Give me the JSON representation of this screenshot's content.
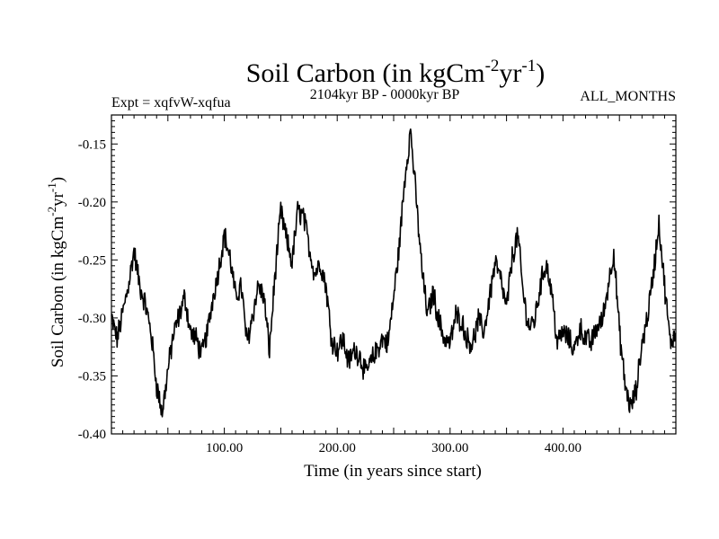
{
  "chart_data": {
    "type": "line",
    "title": "Soil Carbon (in kgCm",
    "title_sup1": "-2",
    "title_mid": "yr",
    "title_sup2": "-1",
    "title_end": ")",
    "subtitle_left": "Expt = xqfvW-xqfua",
    "subtitle_center": "2104kyr BP - 0000kyr BP",
    "subtitle_right": "ALL_MONTHS",
    "xlabel": "Time (in years since start)",
    "ylabel": "Soil Carbon (in kgCm",
    "ylabel_sup1": "-2",
    "ylabel_mid": "yr",
    "ylabel_sup2": "-1",
    "ylabel_end": ")",
    "xlim": [
      0,
      500
    ],
    "ylim": [
      -0.4,
      -0.125
    ],
    "x_ticks": [
      100,
      200,
      300,
      400
    ],
    "x_tick_labels": [
      "100.00",
      "200.00",
      "300.00",
      "400.00"
    ],
    "y_ticks": [
      -0.4,
      -0.35,
      -0.3,
      -0.25,
      -0.2,
      -0.15
    ],
    "y_tick_labels": [
      "-0.40",
      "-0.35",
      "-0.30",
      "-0.25",
      "-0.20",
      "-0.15"
    ],
    "series": [
      {
        "name": "Soil Carbon",
        "color": "#000000",
        "x": [
          0,
          5,
          10,
          15,
          20,
          25,
          30,
          35,
          40,
          45,
          50,
          55,
          60,
          65,
          70,
          75,
          80,
          85,
          90,
          95,
          100,
          105,
          110,
          115,
          120,
          125,
          130,
          135,
          140,
          145,
          150,
          155,
          160,
          165,
          170,
          175,
          180,
          185,
          190,
          195,
          200,
          205,
          210,
          215,
          220,
          225,
          230,
          235,
          240,
          245,
          250,
          255,
          260,
          265,
          270,
          275,
          280,
          285,
          290,
          295,
          300,
          305,
          310,
          315,
          320,
          325,
          330,
          335,
          340,
          345,
          350,
          355,
          360,
          365,
          370,
          375,
          380,
          385,
          390,
          395,
          400,
          405,
          410,
          415,
          420,
          425,
          430,
          435,
          440,
          445,
          450,
          455,
          460,
          465,
          470,
          475,
          480,
          485,
          490,
          495,
          500
        ],
        "y": [
          -0.3,
          -0.318,
          -0.296,
          -0.272,
          -0.242,
          -0.272,
          -0.288,
          -0.312,
          -0.358,
          -0.382,
          -0.345,
          -0.314,
          -0.298,
          -0.282,
          -0.312,
          -0.318,
          -0.332,
          -0.312,
          -0.282,
          -0.258,
          -0.228,
          -0.248,
          -0.282,
          -0.272,
          -0.322,
          -0.298,
          -0.272,
          -0.282,
          -0.328,
          -0.262,
          -0.208,
          -0.232,
          -0.252,
          -0.208,
          -0.212,
          -0.238,
          -0.262,
          -0.252,
          -0.272,
          -0.318,
          -0.328,
          -0.318,
          -0.338,
          -0.328,
          -0.332,
          -0.348,
          -0.338,
          -0.328,
          -0.318,
          -0.322,
          -0.282,
          -0.238,
          -0.178,
          -0.138,
          -0.198,
          -0.258,
          -0.298,
          -0.278,
          -0.302,
          -0.318,
          -0.322,
          -0.298,
          -0.302,
          -0.318,
          -0.322,
          -0.302,
          -0.312,
          -0.282,
          -0.252,
          -0.268,
          -0.292,
          -0.248,
          -0.228,
          -0.282,
          -0.308,
          -0.302,
          -0.272,
          -0.252,
          -0.278,
          -0.322,
          -0.312,
          -0.318,
          -0.328,
          -0.308,
          -0.318,
          -0.322,
          -0.308,
          -0.302,
          -0.272,
          -0.242,
          -0.312,
          -0.358,
          -0.378,
          -0.362,
          -0.322,
          -0.298,
          -0.262,
          -0.218,
          -0.272,
          -0.322,
          -0.312
        ],
        "noise_amplitude": 0.009
      }
    ]
  }
}
